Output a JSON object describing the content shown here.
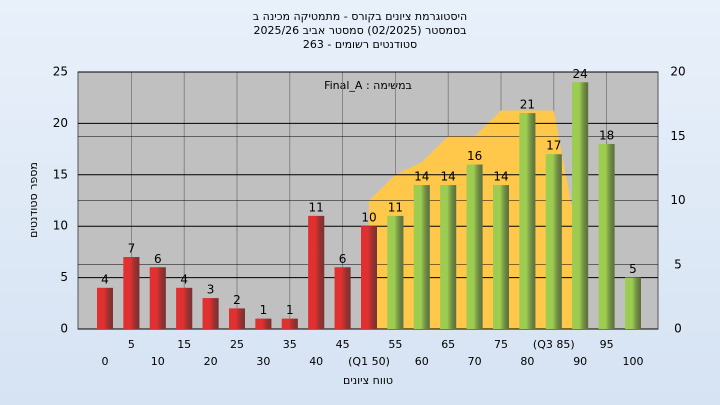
{
  "chart_data": {
    "type": "bar",
    "title": [
      "היסטוגרמת ציונים בקורס - מתמטיקה מכינה ב",
      "בסמסטר  (02/2025)  סמסטר אביב 2025/26",
      "263 - סטודנטים רשומים"
    ],
    "annotation": "Final_A : במשימה",
    "xlabel": "טווח ציונים",
    "ylabel": "מספר סטודנטים",
    "categories": [
      "0",
      "5",
      "10",
      "15",
      "20",
      "25",
      "30",
      "35",
      "40",
      "45",
      "(Q1 50)",
      "55",
      "60",
      "65",
      "70",
      "75",
      "80",
      "(Q3 85)",
      "90",
      "95",
      "100"
    ],
    "values": [
      4,
      7,
      6,
      4,
      3,
      2,
      1,
      1,
      11,
      6,
      10,
      11,
      14,
      14,
      16,
      14,
      21,
      17,
      24,
      18,
      5
    ],
    "colors": [
      "#e03030",
      "#e03030",
      "#e03030",
      "#e03030",
      "#e03030",
      "#e03030",
      "#e03030",
      "#e03030",
      "#e03030",
      "#e03030",
      "#e03030",
      "#9ccc50",
      "#9ccc50",
      "#9ccc50",
      "#9ccc50",
      "#9ccc50",
      "#9ccc50",
      "#9ccc50",
      "#9ccc50",
      "#9ccc50",
      "#9ccc50"
    ],
    "area": {
      "x": [
        50,
        55,
        60,
        65,
        70,
        75,
        80,
        85,
        90
      ],
      "values": [
        10,
        12,
        13,
        15,
        15,
        17,
        17,
        17,
        6
      ],
      "color": "#ffc84a",
      "axis": "y2"
    },
    "ylim": [
      0,
      25
    ],
    "yticks": [
      0,
      5,
      10,
      15,
      20,
      25
    ],
    "y2lim": [
      0,
      20
    ],
    "y2ticks": [
      0,
      5,
      10,
      15,
      20
    ],
    "grid": true
  }
}
